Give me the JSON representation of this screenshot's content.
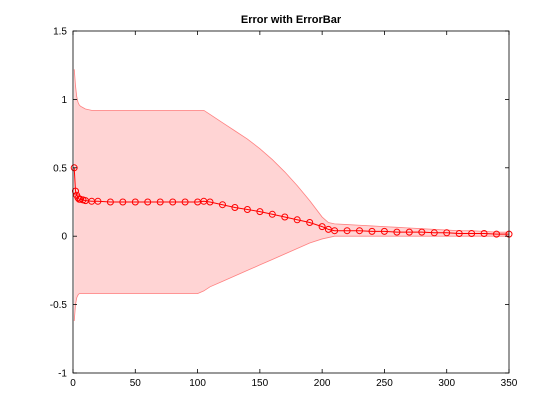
{
  "chart_data": {
    "type": "line",
    "title": "Error with ErrorBar",
    "xlabel": "",
    "ylabel": "",
    "xlim": [
      0,
      350
    ],
    "ylim": [
      -1,
      1.5
    ],
    "x_ticks": [
      0,
      50,
      100,
      150,
      200,
      250,
      300,
      350
    ],
    "x_tick_labels": [
      "0",
      "50",
      "100",
      "150",
      "200",
      "250",
      "300",
      "350"
    ],
    "y_ticks": [
      -1,
      -0.5,
      0,
      0.5,
      1,
      1.5
    ],
    "y_tick_labels": [
      "-1",
      "-0.5",
      "0",
      "0.5",
      "1",
      "1.5"
    ],
    "grid": false,
    "legend": "none",
    "colors": {
      "line": "#ff0000",
      "band_fill": "#ffd4d4",
      "band_edge": "#ff8080"
    },
    "marker": "circle",
    "series": [
      {
        "x": [
          1,
          2,
          3,
          4,
          5,
          6,
          8,
          10,
          15,
          20,
          30,
          40,
          50,
          60,
          70,
          80,
          90,
          100,
          105,
          110,
          120,
          130,
          140,
          150,
          160,
          170,
          180,
          190,
          200,
          205,
          210,
          220,
          230,
          240,
          250,
          260,
          270,
          280,
          290,
          300,
          310,
          320,
          330,
          340,
          350
        ],
        "y": [
          0.5,
          0.33,
          0.3,
          0.28,
          0.27,
          0.27,
          0.265,
          0.26,
          0.255,
          0.255,
          0.25,
          0.25,
          0.25,
          0.25,
          0.25,
          0.25,
          0.25,
          0.25,
          0.255,
          0.25,
          0.23,
          0.21,
          0.195,
          0.18,
          0.16,
          0.14,
          0.12,
          0.1,
          0.07,
          0.05,
          0.04,
          0.04,
          0.04,
          0.035,
          0.035,
          0.03,
          0.03,
          0.03,
          0.025,
          0.025,
          0.02,
          0.02,
          0.02,
          0.015,
          0.015
        ],
        "upper": [
          1.22,
          1.1,
          1.02,
          0.98,
          0.96,
          0.95,
          0.94,
          0.93,
          0.92,
          0.92,
          0.92,
          0.92,
          0.92,
          0.92,
          0.92,
          0.92,
          0.92,
          0.92,
          0.92,
          0.89,
          0.83,
          0.77,
          0.71,
          0.64,
          0.56,
          0.47,
          0.37,
          0.26,
          0.14,
          0.1,
          0.09,
          0.085,
          0.08,
          0.075,
          0.07,
          0.065,
          0.06,
          0.055,
          0.05,
          0.045,
          0.04,
          0.04,
          0.035,
          0.03,
          0.03
        ],
        "lower": [
          -0.62,
          -0.5,
          -0.45,
          -0.43,
          -0.42,
          -0.42,
          -0.42,
          -0.42,
          -0.42,
          -0.42,
          -0.42,
          -0.42,
          -0.42,
          -0.42,
          -0.42,
          -0.42,
          -0.42,
          -0.42,
          -0.4,
          -0.37,
          -0.33,
          -0.29,
          -0.25,
          -0.21,
          -0.17,
          -0.13,
          -0.09,
          -0.05,
          -0.02,
          -0.01,
          0,
          0,
          0,
          0,
          0,
          0,
          0,
          0,
          0,
          0,
          0,
          0,
          0,
          0,
          0
        ]
      }
    ]
  }
}
